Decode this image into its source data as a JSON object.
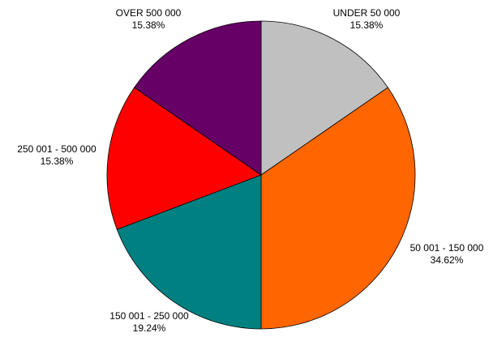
{
  "chart_data": {
    "type": "pie",
    "title": "",
    "slices": [
      {
        "label": "UNDER 50 000",
        "value": 15.38,
        "percent_label": "15.38%",
        "color": "#C0C0C0"
      },
      {
        "label": "50 001 - 150 000",
        "value": 34.62,
        "percent_label": "34.62%",
        "color": "#FF6600"
      },
      {
        "label": "150 001 - 250 000",
        "value": 19.24,
        "percent_label": "19.24%",
        "color": "#008080"
      },
      {
        "label": "250 001 - 500 000",
        "value": 15.38,
        "percent_label": "15.38%",
        "color": "#FF0000"
      },
      {
        "label": "OVER 500 000",
        "value": 15.38,
        "percent_label": "15.38%",
        "color": "#660066"
      }
    ],
    "start_angle_deg": 0,
    "direction": "clockwise",
    "legend": "none"
  }
}
